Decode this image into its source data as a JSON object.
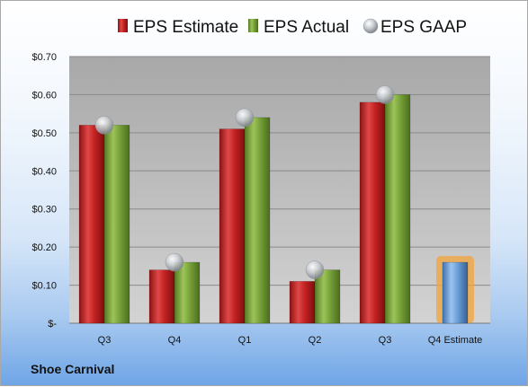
{
  "colors": {
    "estimate": "#c42222",
    "actual": "#78a23a",
    "gaap": "#b4b8bd",
    "q4_estimate": "#6a9fd8",
    "q4_estimate_glow": "#f3a33a"
  },
  "footer": {
    "company": "Shoe Carnival"
  },
  "chart_data": {
    "type": "bar",
    "categories": [
      "Q3",
      "Q4",
      "Q1",
      "Q2",
      "Q3",
      "Q4 Estimate"
    ],
    "series": [
      {
        "name": "EPS Estimate",
        "values": [
          0.52,
          0.14,
          0.51,
          0.11,
          0.58,
          null
        ]
      },
      {
        "name": "EPS Actual",
        "values": [
          0.52,
          0.16,
          0.54,
          0.14,
          0.6,
          0.16
        ]
      },
      {
        "name": "EPS GAAP",
        "values": [
          0.52,
          0.16,
          0.54,
          0.14,
          0.6,
          null
        ]
      }
    ],
    "ylim": [
      0,
      0.7
    ],
    "yticks": [
      0,
      0.1,
      0.2,
      0.3,
      0.4,
      0.5,
      0.6,
      0.7
    ],
    "ytick_labels": [
      "$-",
      "$0.10",
      "$0.20",
      "$0.30",
      "$0.40",
      "$0.50",
      "$0.60",
      "$0.70"
    ],
    "grid": true,
    "legend_position": "top"
  }
}
